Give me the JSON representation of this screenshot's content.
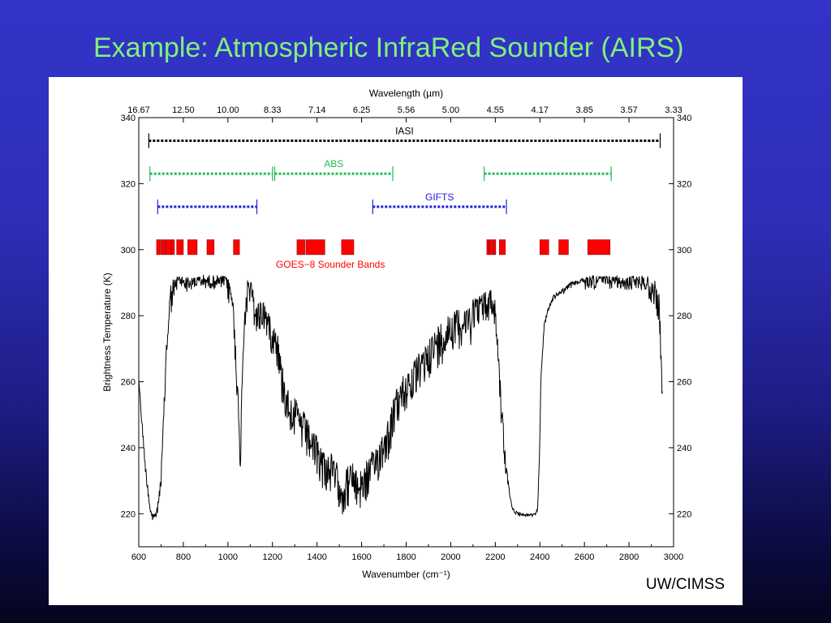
{
  "slide": {
    "title": "Example: Atmospheric InfraRed Sounder (AIRS)",
    "credit": "UW/CIMSS",
    "colors": {
      "title": "#7ff27a",
      "background_top": "#3333c8",
      "background_bottom": "#05051e"
    }
  },
  "chart_data": {
    "type": "line",
    "title": "",
    "xlabel": "Wavenumber (cm⁻¹)",
    "x2label": "Wavelength (µm)",
    "ylabel": "Brightness Temperature (K)",
    "xlim": [
      600,
      3000
    ],
    "ylim": [
      210,
      340
    ],
    "xticks": [
      600,
      800,
      1000,
      1200,
      1400,
      1600,
      1800,
      2000,
      2200,
      2400,
      2600,
      2800,
      3000
    ],
    "yticks": [
      220,
      240,
      260,
      280,
      300,
      320,
      340
    ],
    "x2ticks": [
      "16.67",
      "12.50",
      "10.00",
      "8.33",
      "7.14",
      "6.25",
      "5.56",
      "5.00",
      "4.55",
      "4.17",
      "3.85",
      "3.57",
      "3.33"
    ],
    "grid": false,
    "instruments": [
      {
        "name": "IASI",
        "color": "#000000",
        "y": 333,
        "segments": [
          [
            645,
            2940
          ]
        ]
      },
      {
        "name": "ABS",
        "color": "#22bb55",
        "y": 323,
        "segments": [
          [
            650,
            1200
          ],
          [
            1210,
            1740
          ],
          [
            2150,
            2720
          ]
        ]
      },
      {
        "name": "GIFTS",
        "color": "#2222dd",
        "y": 313,
        "segments": [
          [
            685,
            1130
          ],
          [
            1650,
            2250
          ]
        ]
      }
    ],
    "bands_label": "GOES−8 Sounder Bands",
    "bands_color": "#ff0000",
    "bands_y": [
      298.5,
      303
    ],
    "bands": [
      [
        680,
        700
      ],
      [
        703,
        718
      ],
      [
        720,
        745
      ],
      [
        746,
        760
      ],
      [
        770,
        800
      ],
      [
        820,
        862
      ],
      [
        906,
        938
      ],
      [
        1025,
        1052
      ],
      [
        1310,
        1345
      ],
      [
        1350,
        1435
      ],
      [
        1510,
        1565
      ],
      [
        2162,
        2172
      ],
      [
        2174,
        2190
      ],
      [
        2192,
        2202
      ],
      [
        2218,
        2245
      ],
      [
        2400,
        2440
      ],
      [
        2485,
        2528
      ],
      [
        2615,
        2715
      ]
    ],
    "series": [
      {
        "color": "#000000",
        "x": [
          600,
          615,
          630,
          645,
          655,
          662,
          668,
          675,
          685,
          700,
          712,
          722,
          735,
          745,
          760,
          780,
          800,
          830,
          860,
          900,
          940,
          980,
          1000,
          1020,
          1035,
          1045,
          1050,
          1055,
          1060,
          1065,
          1075,
          1090,
          1100,
          1110,
          1130,
          1160,
          1200,
          1220,
          1240,
          1260,
          1280,
          1300,
          1320,
          1340,
          1360,
          1380,
          1400,
          1420,
          1440,
          1460,
          1480,
          1500,
          1520,
          1540,
          1560,
          1580,
          1600,
          1620,
          1640,
          1660,
          1680,
          1700,
          1720,
          1740,
          1760,
          1780,
          1800,
          1820,
          1840,
          1860,
          1880,
          1900,
          1920,
          1940,
          1960,
          1980,
          2000,
          2020,
          2040,
          2060,
          2080,
          2100,
          2120,
          2140,
          2160,
          2180,
          2200,
          2215,
          2225,
          2235,
          2245,
          2255,
          2265,
          2275,
          2290,
          2320,
          2350,
          2380,
          2390,
          2398,
          2405,
          2420,
          2440,
          2460,
          2500,
          2540,
          2580,
          2620,
          2660,
          2700,
          2740,
          2780,
          2820,
          2860,
          2900,
          2920,
          2935,
          2940,
          2945,
          2950
        ],
        "y": [
          262,
          248,
          235,
          226,
          221,
          220,
          221,
          220,
          223,
          232,
          252,
          270,
          284,
          290,
          291,
          292,
          292,
          291,
          292,
          292,
          292,
          292,
          292,
          288,
          272,
          258,
          246,
          240,
          252,
          268,
          284,
          292,
          293,
          288,
          283,
          285,
          278,
          276,
          266,
          260,
          257,
          255,
          252,
          250,
          248,
          245,
          243,
          240,
          238,
          238,
          236,
          233,
          231,
          234,
          235,
          232,
          233,
          235,
          237,
          240,
          242,
          246,
          248,
          254,
          258,
          260,
          263,
          264,
          266,
          268,
          270,
          273,
          274,
          276,
          278,
          279,
          281,
          282,
          282,
          282,
          283,
          285,
          286,
          286,
          287,
          288,
          284,
          270,
          256,
          248,
          240,
          232,
          226,
          222,
          221,
          220,
          220,
          220,
          222,
          238,
          262,
          278,
          283,
          286,
          288,
          290,
          291,
          292,
          292,
          292,
          292,
          291,
          292,
          292,
          291,
          290,
          286,
          278,
          266,
          258
        ],
        "noise": [
          [
            600,
            700,
            3
          ],
          [
            700,
            760,
            10
          ],
          [
            760,
            1000,
            4
          ],
          [
            1000,
            1090,
            9
          ],
          [
            1090,
            1220,
            10
          ],
          [
            1220,
            2100,
            12
          ],
          [
            2100,
            2260,
            9
          ],
          [
            2260,
            2400,
            1
          ],
          [
            2400,
            2600,
            1.5
          ],
          [
            2600,
            2880,
            4
          ],
          [
            2880,
            2960,
            8
          ]
        ]
      }
    ]
  }
}
